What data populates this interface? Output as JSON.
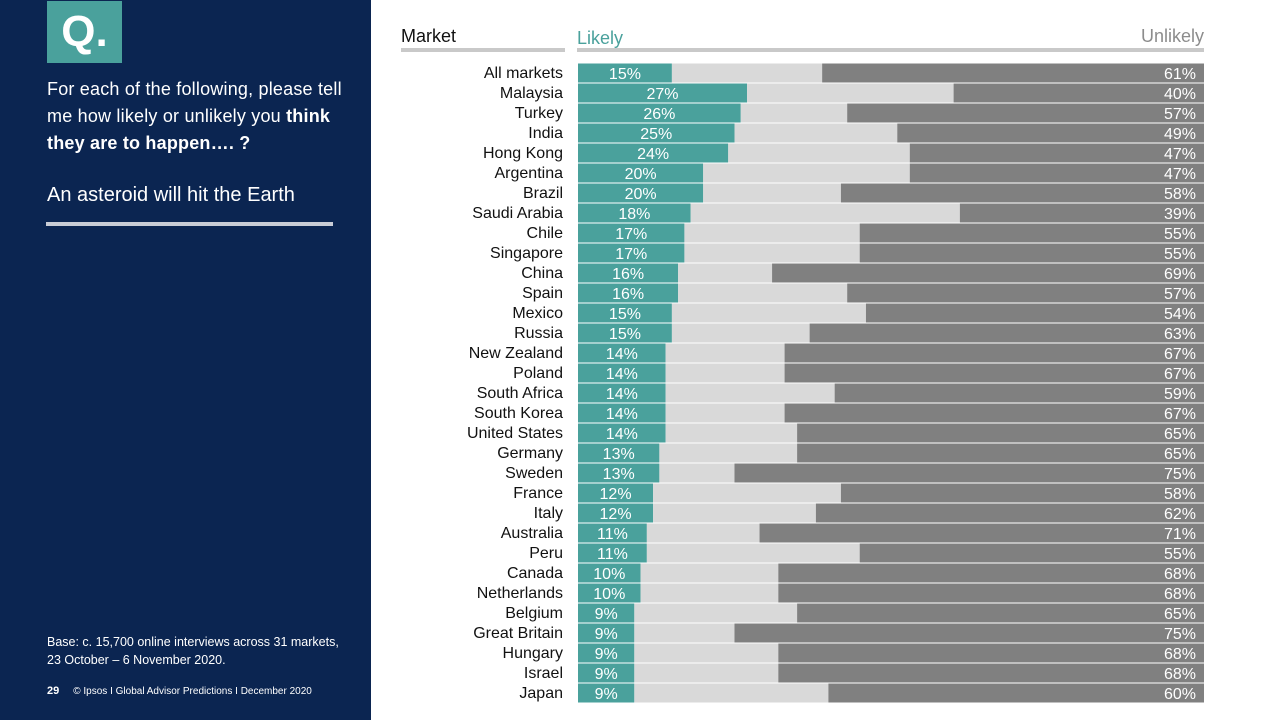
{
  "panel": {
    "badge": "Q.",
    "question_part1": "For each of the following, please tell me how likely or unlikely you ",
    "question_bold": "think they are to happen…. ?",
    "topic": "An asteroid will hit the Earth",
    "base": "Base: c. 15,700 online interviews across 31 markets,  23 October – 6 November 2020.",
    "page_number": "29",
    "footer": "© Ipsos I Global Advisor Predictions I December 2020"
  },
  "headers": {
    "market": "Market",
    "likely": "Likely",
    "unlikely": "Unlikely"
  },
  "colors": {
    "panel_bg": "#0b2551",
    "likely": "#4aa19c",
    "neutral": "#d9d9d9",
    "unlikely": "#808080"
  },
  "chart_data": {
    "type": "bar",
    "orientation": "horizontal-stacked-100",
    "categories": [
      "All markets",
      "Malaysia",
      "Turkey",
      "India",
      "Hong Kong",
      "Argentina",
      "Brazil",
      "Saudi Arabia",
      "Chile",
      "Singapore",
      "China",
      "Spain",
      "Mexico",
      "Russia",
      "New Zealand",
      "Poland",
      "South Africa",
      "South Korea",
      "United States",
      "Germany",
      "Sweden",
      "France",
      "Italy",
      "Australia",
      "Peru",
      "Canada",
      "Netherlands",
      "Belgium",
      "Great Britain",
      "Hungary",
      "Israel",
      "Japan"
    ],
    "series": [
      {
        "name": "Likely",
        "values": [
          15,
          27,
          26,
          25,
          24,
          20,
          20,
          18,
          17,
          17,
          16,
          16,
          15,
          15,
          14,
          14,
          14,
          14,
          14,
          13,
          13,
          12,
          12,
          11,
          11,
          10,
          10,
          9,
          9,
          9,
          9,
          9
        ]
      },
      {
        "values": [
          24,
          33,
          17,
          26,
          29,
          33,
          22,
          43,
          28,
          28,
          15,
          27,
          31,
          22,
          19,
          19,
          27,
          19,
          21,
          22,
          12,
          30,
          26,
          18,
          34,
          22,
          22,
          26,
          16,
          23,
          23,
          31
        ]
      },
      {
        "name": "Unlikely",
        "values": [
          61,
          40,
          57,
          49,
          47,
          47,
          58,
          39,
          55,
          55,
          69,
          57,
          54,
          63,
          67,
          67,
          59,
          67,
          65,
          65,
          75,
          58,
          62,
          71,
          55,
          68,
          68,
          65,
          75,
          68,
          68,
          60
        ]
      }
    ],
    "labels_likely": [
      "15%",
      "27%",
      "26%",
      "25%",
      "24%",
      "20%",
      "20%",
      "18%",
      "17%",
      "17%",
      "16%",
      "16%",
      "15%",
      "15%",
      "14%",
      "14%",
      "14%",
      "14%",
      "14%",
      "13%",
      "13%",
      "12%",
      "12%",
      "11%",
      "11%",
      "10%",
      "10%",
      "9%",
      "9%",
      "9%",
      "9%",
      "9%"
    ],
    "labels_unlikely": [
      "61%",
      "40%",
      "57%",
      "49%",
      "47%",
      "47%",
      "58%",
      "39%",
      "55%",
      "55%",
      "69%",
      "57%",
      "54%",
      "63%",
      "67%",
      "67%",
      "59%",
      "67%",
      "65%",
      "65%",
      "75%",
      "58%",
      "62%",
      "71%",
      "55%",
      "68%",
      "68%",
      "65%",
      "75%",
      "68%",
      "68%",
      "60%"
    ],
    "xlim": [
      0,
      100
    ]
  }
}
